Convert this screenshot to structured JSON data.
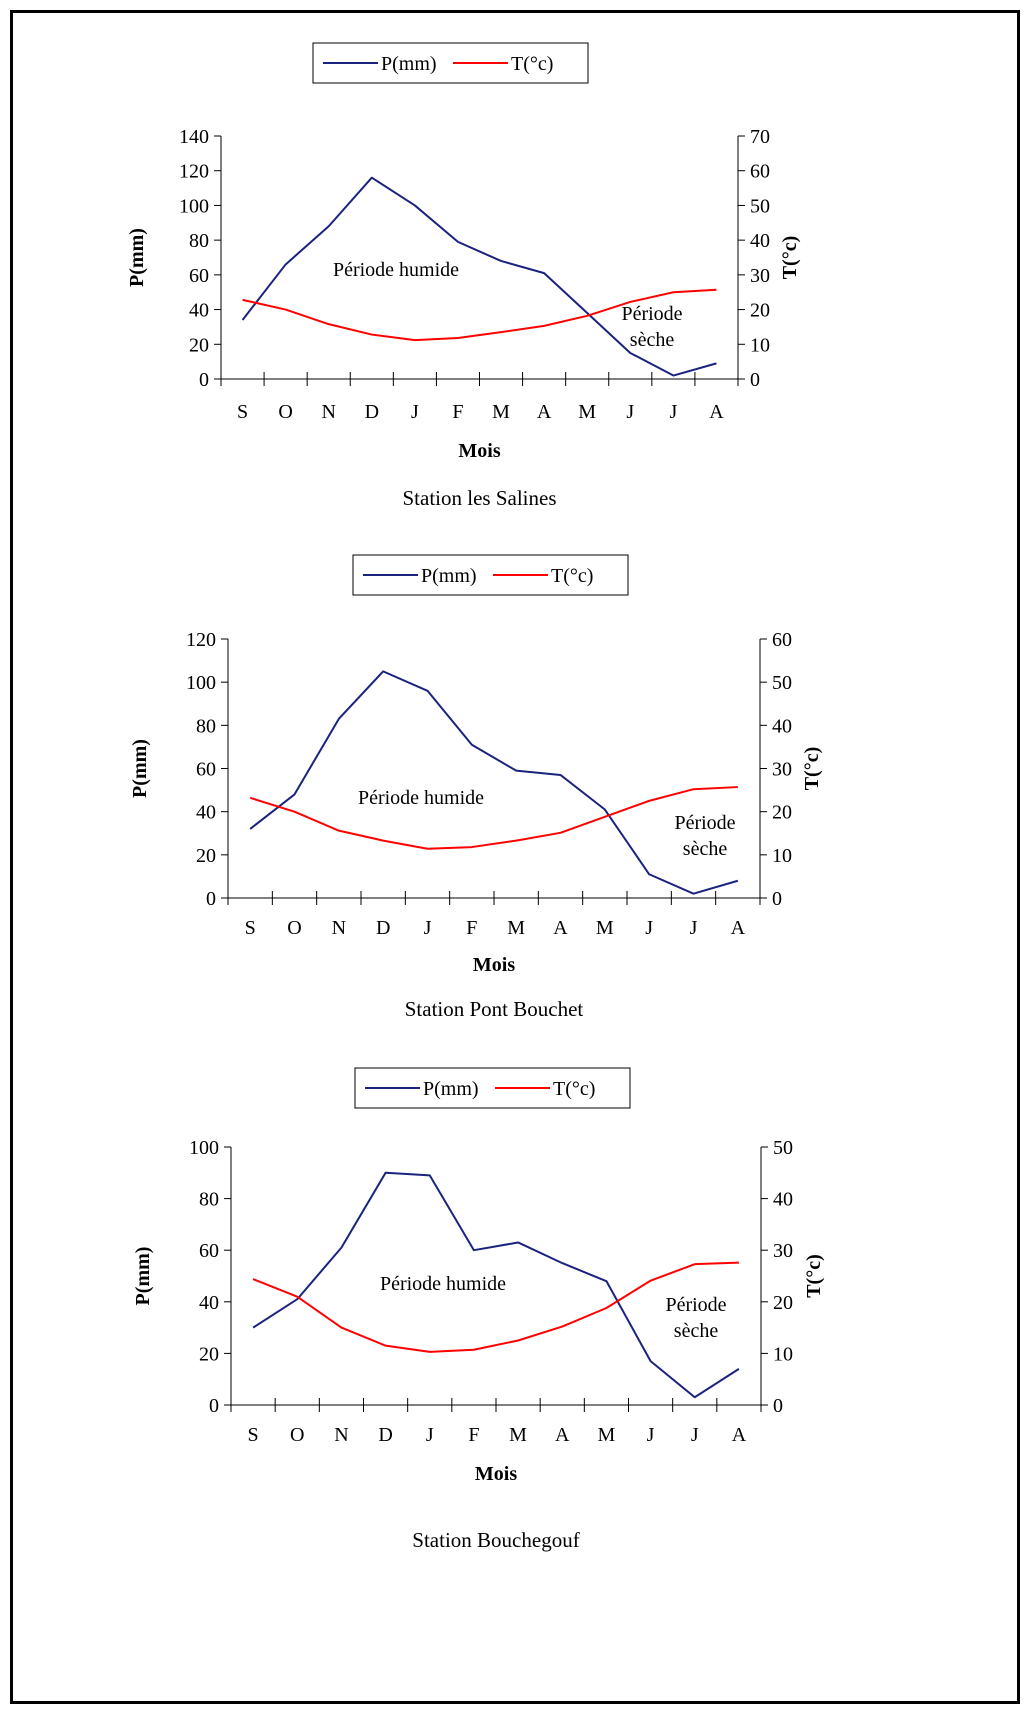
{
  "chart_data": [
    {
      "type": "line",
      "station": "Station les Salines",
      "categories": [
        "S",
        "O",
        "N",
        "D",
        "J",
        "F",
        "M",
        "A",
        "M",
        "J",
        "J",
        "A"
      ],
      "xlabel": "Mois",
      "ylabel": "P(mm)",
      "y2label": "T(°c)",
      "ylim": [
        0,
        140
      ],
      "y2lim": [
        0,
        70
      ],
      "yticks": [
        "0",
        "20",
        "40",
        "60",
        "80",
        "100",
        "120",
        "140"
      ],
      "y2ticks": [
        "0",
        "10",
        "20",
        "30",
        "40",
        "50",
        "60",
        "70"
      ],
      "legend_position": "top",
      "series": [
        {
          "name": "P(mm)",
          "axis": "left",
          "color": "#1a237e",
          "values": [
            34,
            66,
            88,
            116,
            100,
            79,
            68,
            61,
            38,
            15,
            2,
            9
          ]
        },
        {
          "name": "T(°c)",
          "axis": "right",
          "color": "#ff0000",
          "values": [
            22.8,
            20,
            15.8,
            12.8,
            11.2,
            11.8,
            13.5,
            15.3,
            18.2,
            22.2,
            25,
            25.7
          ]
        }
      ],
      "annotations": [
        {
          "lines": [
            "Période humide"
          ]
        },
        {
          "lines": [
            "Période",
            "sèche"
          ]
        }
      ]
    },
    {
      "type": "line",
      "station": "Station Pont Bouchet",
      "categories": [
        "S",
        "O",
        "N",
        "D",
        "J",
        "F",
        "M",
        "A",
        "M",
        "J",
        "J",
        "A"
      ],
      "xlabel": "Mois",
      "ylabel": "P(mm)",
      "y2label": "T(°c)",
      "ylim": [
        0,
        120
      ],
      "y2lim": [
        0,
        60
      ],
      "yticks": [
        "0",
        "20",
        "40",
        "60",
        "80",
        "100",
        "120"
      ],
      "y2ticks": [
        "0",
        "10",
        "20",
        "30",
        "40",
        "50",
        "60"
      ],
      "legend_position": "top",
      "series": [
        {
          "name": "P(mm)",
          "axis": "left",
          "color": "#1a237e",
          "values": [
            32,
            48,
            83,
            105,
            96,
            71,
            59,
            57,
            41,
            11,
            2,
            8
          ]
        },
        {
          "name": "T(°c)",
          "axis": "right",
          "color": "#ff0000",
          "values": [
            23.2,
            20,
            15.6,
            13.3,
            11.4,
            11.8,
            13.3,
            15.1,
            18.8,
            22.5,
            25.2,
            25.7
          ]
        }
      ],
      "annotations": [
        {
          "lines": [
            "Période humide"
          ]
        },
        {
          "lines": [
            "Période",
            "sèche"
          ]
        }
      ]
    },
    {
      "type": "line",
      "station": "Station Bouchegouf",
      "categories": [
        "S",
        "O",
        "N",
        "D",
        "J",
        "F",
        "M",
        "A",
        "M",
        "J",
        "J",
        "A"
      ],
      "xlabel": "Mois",
      "ylabel": "P(mm)",
      "y2label": "T(°c)",
      "ylim": [
        0,
        100
      ],
      "y2lim": [
        0,
        50
      ],
      "yticks": [
        "0",
        "20",
        "40",
        "60",
        "80",
        "100"
      ],
      "y2ticks": [
        "0",
        "10",
        "20",
        "30",
        "40",
        "50"
      ],
      "legend_position": "top",
      "series": [
        {
          "name": "P(mm)",
          "axis": "left",
          "color": "#1a237e",
          "values": [
            30,
            41,
            61,
            90,
            89,
            60,
            63,
            55,
            48,
            17,
            3,
            14
          ]
        },
        {
          "name": "T(°c)",
          "axis": "right",
          "color": "#ff0000",
          "values": [
            24.4,
            21,
            15,
            11.5,
            10.3,
            10.7,
            12.5,
            15.2,
            18.8,
            24.1,
            27.3,
            27.6
          ]
        }
      ],
      "annotations": [
        {
          "lines": [
            "Période humide"
          ]
        },
        {
          "lines": [
            "Période",
            "sèche"
          ]
        }
      ]
    }
  ]
}
